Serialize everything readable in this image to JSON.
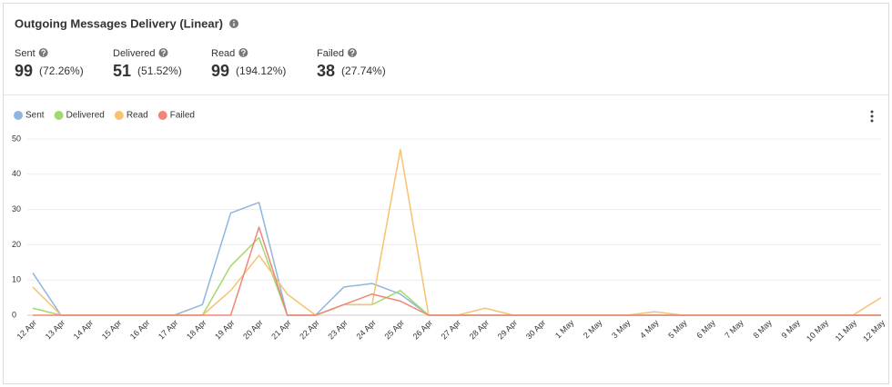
{
  "header": {
    "title": "Outgoing Messages Delivery (Linear)"
  },
  "stats": [
    {
      "label": "Sent",
      "value": 99,
      "percent": "(72.26%)"
    },
    {
      "label": "Delivered",
      "value": 51,
      "percent": "(51.52%)"
    },
    {
      "label": "Read",
      "value": 99,
      "percent": "(194.12%)"
    },
    {
      "label": "Failed",
      "value": 38,
      "percent": "(27.74%)"
    }
  ],
  "chart_data": {
    "type": "line",
    "categories": [
      "12 Apr",
      "13 Apr",
      "14 Apr",
      "15 Apr",
      "16 Apr",
      "17 Apr",
      "18 Apr",
      "19 Apr",
      "20 Apr",
      "21 Apr",
      "22 Apr",
      "23 Apr",
      "24 Apr",
      "25 Apr",
      "26 Apr",
      "27 Apr",
      "28 Apr",
      "29 Apr",
      "30 Apr",
      "1 May",
      "2 May",
      "3 May",
      "4 May",
      "5 May",
      "6 May",
      "7 May",
      "8 May",
      "9 May",
      "10 May",
      "11 May",
      "12 May"
    ],
    "series": [
      {
        "name": "Sent",
        "color": "#8fb6dd",
        "values": [
          12,
          0,
          0,
          0,
          0,
          0,
          3,
          29,
          32,
          0,
          0,
          8,
          9,
          6,
          0,
          0,
          0,
          0,
          0,
          0,
          0,
          0,
          0,
          0,
          0,
          0,
          0,
          0,
          0,
          0,
          0
        ]
      },
      {
        "name": "Delivered",
        "color": "#a5d86c",
        "values": [
          2,
          0,
          0,
          0,
          0,
          0,
          0,
          14,
          22,
          0,
          0,
          3,
          3,
          7,
          0,
          0,
          0,
          0,
          0,
          0,
          0,
          0,
          0,
          0,
          0,
          0,
          0,
          0,
          0,
          0,
          0
        ]
      },
      {
        "name": "Read",
        "color": "#f7c271",
        "values": [
          8,
          0,
          0,
          0,
          0,
          0,
          0,
          7,
          17,
          6,
          0,
          3,
          3,
          47,
          0,
          0,
          2,
          0,
          0,
          0,
          0,
          0,
          1,
          0,
          0,
          0,
          0,
          0,
          0,
          0,
          5
        ]
      },
      {
        "name": "Failed",
        "color": "#f08677",
        "values": [
          0,
          0,
          0,
          0,
          0,
          0,
          0,
          0,
          25,
          0,
          0,
          3,
          6,
          4,
          0,
          0,
          0,
          0,
          0,
          0,
          0,
          0,
          0,
          0,
          0,
          0,
          0,
          0,
          0,
          0,
          0
        ]
      }
    ],
    "ylim": [
      0,
      50
    ],
    "yticks": [
      0,
      10,
      20,
      30,
      40,
      50
    ],
    "grid": true,
    "legend": "top-left"
  }
}
